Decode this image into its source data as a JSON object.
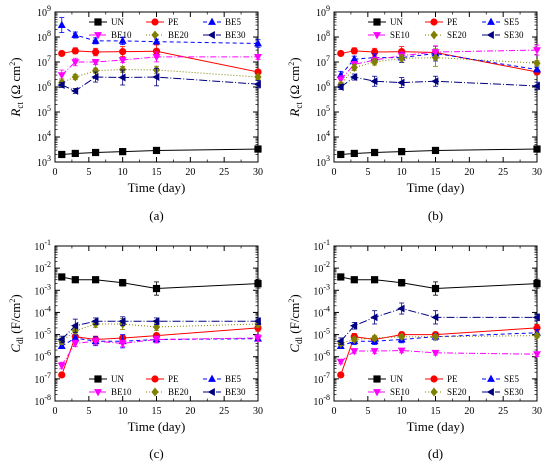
{
  "figure": {
    "panel_labels": [
      "(a)",
      "(b)",
      "(c)",
      "(d)"
    ]
  },
  "chart_data": [
    {
      "type": "line",
      "panel": "(a)",
      "y_scale": "log",
      "ylim": [
        1000,
        1000000000
      ],
      "xlim": [
        0,
        30
      ],
      "xlabel": "Time (day)",
      "ylabel": "R_ct (Ω cm²)",
      "ylabel_parts": {
        "main": "R",
        "sub": "ct",
        "unit": " (Ω cm",
        "sup": "2",
        "close": ")"
      },
      "x_ticks": [
        0,
        5,
        10,
        15,
        20,
        25,
        30
      ],
      "y_ticks": [
        {
          "v": 1000,
          "mant": "10",
          "exp": "3"
        },
        {
          "v": 10000,
          "mant": "10",
          "exp": "4"
        },
        {
          "v": 100000,
          "mant": "10",
          "exp": "5"
        },
        {
          "v": 1000000,
          "mant": "10",
          "exp": "6"
        },
        {
          "v": 10000000,
          "mant": "10",
          "exp": "7"
        },
        {
          "v": 100000000,
          "mant": "10",
          "exp": "8"
        },
        {
          "v": 1000000000,
          "mant": "10",
          "exp": "9"
        }
      ],
      "x": [
        1,
        3,
        6,
        10,
        15,
        30
      ],
      "legend": {
        "placement": "top",
        "rows": [
          [
            "UN",
            "PE",
            "BE5"
          ],
          [
            "BE10",
            "BE20",
            "BE30"
          ]
        ]
      },
      "series": [
        {
          "name": "UN",
          "color": "#000000",
          "marker": "square",
          "dash": "",
          "values": [
            2000,
            2200,
            2400,
            2600,
            2900,
            3300
          ],
          "err": [
            0.12,
            0.1,
            0.08,
            0.06,
            0.05,
            0.04
          ]
        },
        {
          "name": "PE",
          "color": "#ff0000",
          "marker": "circle",
          "dash": "",
          "values": [
            22000000,
            28000000,
            25000000,
            26000000,
            27000000,
            4000000
          ],
          "err": [
            0,
            0.12,
            0.15,
            0.2,
            0.25,
            0.08
          ]
        },
        {
          "name": "BE5",
          "color": "#0000ff",
          "marker": "triangle-up",
          "dash": "4,3",
          "values": [
            300000000,
            120000000,
            70000000,
            70000000,
            65000000,
            55000000
          ],
          "err": [
            0.3,
            0.12,
            0.12,
            0.15,
            0.1,
            0.15
          ]
        },
        {
          "name": "BE10",
          "color": "#ff00ff",
          "marker": "triangle-down",
          "dash": "6,2,1,2",
          "values": [
            3000000,
            10000000,
            10000000,
            12000000,
            16000000,
            16000000
          ],
          "err": [
            0.2,
            0.15,
            0.1,
            0.1,
            0.2,
            0.1
          ]
        },
        {
          "name": "BE20",
          "color": "#808000",
          "marker": "diamond",
          "dash": "1,2",
          "values": [
            1500000,
            2500000,
            4500000,
            5000000,
            4800000,
            2500000
          ],
          "err": [
            0.15,
            0.1,
            0.1,
            0.12,
            0.15,
            0.1
          ]
        },
        {
          "name": "BE30",
          "color": "#000080",
          "marker": "triangle-left",
          "dash": "8,2,1,2",
          "values": [
            1200000,
            700000,
            2500000,
            2400000,
            2500000,
            1300000
          ],
          "err": [
            0.1,
            0.1,
            0.2,
            0.3,
            0.35,
            0.15
          ]
        }
      ]
    },
    {
      "type": "line",
      "panel": "(b)",
      "y_scale": "log",
      "ylim": [
        1000,
        1000000000
      ],
      "xlim": [
        0,
        30
      ],
      "xlabel": "Time (day)",
      "ylabel": "R_ct (Ω cm²)",
      "ylabel_parts": {
        "main": "R",
        "sub": "ct",
        "unit": " (Ω cm",
        "sup": "2",
        "close": ")"
      },
      "x_ticks": [
        0,
        5,
        10,
        15,
        20,
        25,
        30
      ],
      "y_ticks": [
        {
          "v": 1000,
          "mant": "10",
          "exp": "3"
        },
        {
          "v": 10000,
          "mant": "10",
          "exp": "4"
        },
        {
          "v": 100000,
          "mant": "10",
          "exp": "5"
        },
        {
          "v": 1000000,
          "mant": "10",
          "exp": "6"
        },
        {
          "v": 10000000,
          "mant": "10",
          "exp": "7"
        },
        {
          "v": 100000000,
          "mant": "10",
          "exp": "8"
        },
        {
          "v": 1000000000,
          "mant": "10",
          "exp": "9"
        }
      ],
      "x": [
        1,
        3,
        6,
        10,
        15,
        30
      ],
      "legend": {
        "placement": "top",
        "rows": [
          [
            "UN",
            "PE",
            "SE5"
          ],
          [
            "SE10",
            "SE20",
            "SE30"
          ]
        ]
      },
      "series": [
        {
          "name": "UN",
          "color": "#000000",
          "marker": "square",
          "dash": "",
          "values": [
            2000,
            2200,
            2400,
            2600,
            2900,
            3300
          ],
          "err": [
            0.12,
            0.1,
            0.08,
            0.06,
            0.05,
            0.04
          ]
        },
        {
          "name": "PE",
          "color": "#ff0000",
          "marker": "circle",
          "dash": "",
          "values": [
            22000000,
            28000000,
            25000000,
            26000000,
            24000000,
            4000000
          ],
          "err": [
            0,
            0.12,
            0.15,
            0.2,
            0.25,
            0.1
          ]
        },
        {
          "name": "SE5",
          "color": "#0000ff",
          "marker": "triangle-up",
          "dash": "4,3",
          "values": [
            3000000,
            13000000,
            15000000,
            15000000,
            22000000,
            5000000
          ],
          "err": [
            0.15,
            0.12,
            0.15,
            0.2,
            0.3,
            0.1
          ]
        },
        {
          "name": "SE10",
          "color": "#ff00ff",
          "marker": "triangle-down",
          "dash": "6,2,1,2",
          "values": [
            2000000,
            8000000,
            12000000,
            18000000,
            25000000,
            30000000
          ],
          "err": [
            0.15,
            0.12,
            0.12,
            0.15,
            0.25,
            0.2
          ]
        },
        {
          "name": "SE20",
          "color": "#808000",
          "marker": "diamond",
          "dash": "1,2",
          "values": [
            1200000,
            6000000,
            10000000,
            14000000,
            15000000,
            9000000
          ],
          "err": [
            0.1,
            0.12,
            0.12,
            0.15,
            0.35,
            0.1
          ]
        },
        {
          "name": "SE30",
          "color": "#000080",
          "marker": "triangle-left",
          "dash": "8,2,1,2",
          "values": [
            1000000,
            2500000,
            1700000,
            1500000,
            1700000,
            1100000
          ],
          "err": [
            0.1,
            0.12,
            0.2,
            0.2,
            0.2,
            0.15
          ]
        }
      ]
    },
    {
      "type": "line",
      "panel": "(c)",
      "y_scale": "log",
      "ylim": [
        1e-08,
        0.1
      ],
      "xlim": [
        0,
        30
      ],
      "xlabel": "Time (day)",
      "ylabel": "C_dl (F/cm²)",
      "ylabel_parts": {
        "main": "C",
        "sub": "dl",
        "unit": " (F/cm",
        "sup": "2",
        "close": ")"
      },
      "x_ticks": [
        0,
        5,
        10,
        15,
        20,
        25,
        30
      ],
      "y_ticks": [
        {
          "v": 1e-08,
          "mant": "10",
          "exp": "-8"
        },
        {
          "v": 1e-07,
          "mant": "10",
          "exp": "-7"
        },
        {
          "v": 1e-06,
          "mant": "10",
          "exp": "-6"
        },
        {
          "v": 1e-05,
          "mant": "10",
          "exp": "-5"
        },
        {
          "v": 0.0001,
          "mant": "10",
          "exp": "-4"
        },
        {
          "v": 0.001,
          "mant": "10",
          "exp": "-3"
        },
        {
          "v": 0.01,
          "mant": "10",
          "exp": "-2"
        },
        {
          "v": 0.1,
          "mant": "10",
          "exp": "-1"
        }
      ],
      "x": [
        1,
        3,
        6,
        10,
        15,
        30
      ],
      "legend": {
        "placement": "bottom",
        "rows": [
          [
            "UN",
            "PE",
            "BE5"
          ],
          [
            "BE10",
            "BE20",
            "BE30"
          ]
        ]
      },
      "series": [
        {
          "name": "UN",
          "color": "#000000",
          "marker": "square",
          "dash": "",
          "values": [
            0.004,
            0.003,
            0.003,
            0.0022,
            0.0012,
            0.002
          ],
          "err": [
            0.05,
            0.1,
            0.1,
            0.15,
            0.3,
            0.2
          ]
        },
        {
          "name": "PE",
          "color": "#ff0000",
          "marker": "circle",
          "dash": "",
          "values": [
            1.5e-07,
            8e-06,
            6e-06,
            7e-06,
            9e-06,
            2e-05
          ],
          "err": [
            0,
            0.2,
            0.15,
            0.1,
            0.1,
            0.15
          ]
        },
        {
          "name": "BE5",
          "color": "#0000ff",
          "marker": "triangle-up",
          "dash": "4,3",
          "values": [
            3e-06,
            7e-06,
            5e-06,
            5e-06,
            6e-06,
            6.5e-06
          ],
          "err": [
            0.1,
            0.15,
            0.2,
            0.3,
            0.15,
            0.1
          ]
        },
        {
          "name": "BE10",
          "color": "#ff00ff",
          "marker": "triangle-down",
          "dash": "6,2,1,2",
          "values": [
            4e-07,
            4e-06,
            5e-06,
            4e-06,
            6e-06,
            7e-06
          ],
          "err": [
            0.15,
            0.15,
            0.15,
            0.15,
            0.15,
            0.15
          ]
        },
        {
          "name": "BE20",
          "color": "#808000",
          "marker": "diamond",
          "dash": "1,2",
          "values": [
            5e-06,
            1.5e-05,
            3e-05,
            3e-05,
            2.2e-05,
            3e-05
          ],
          "err": [
            0.15,
            0.15,
            0.15,
            0.25,
            0.15,
            0.15
          ]
        },
        {
          "name": "BE30",
          "color": "#000080",
          "marker": "triangle-left",
          "dash": "8,2,1,2",
          "values": [
            6e-06,
            2.5e-05,
            4e-05,
            4e-05,
            4e-05,
            4e-05
          ],
          "err": [
            0.15,
            0.3,
            0.15,
            0.2,
            0.15,
            0.15
          ]
        }
      ]
    },
    {
      "type": "line",
      "panel": "(d)",
      "y_scale": "log",
      "ylim": [
        1e-08,
        0.1
      ],
      "xlim": [
        0,
        30
      ],
      "xlabel": "Time (day)",
      "ylabel": "C_dl (F/cm²)",
      "ylabel_parts": {
        "main": "C",
        "sub": "dl",
        "unit": " (F/cm",
        "sup": "2",
        "close": ")"
      },
      "x_ticks": [
        0,
        5,
        10,
        15,
        20,
        25,
        30
      ],
      "y_ticks": [
        {
          "v": 1e-08,
          "mant": "10",
          "exp": "-8"
        },
        {
          "v": 1e-07,
          "mant": "10",
          "exp": "-7"
        },
        {
          "v": 1e-06,
          "mant": "10",
          "exp": "-6"
        },
        {
          "v": 1e-05,
          "mant": "10",
          "exp": "-5"
        },
        {
          "v": 0.0001,
          "mant": "10",
          "exp": "-4"
        },
        {
          "v": 0.001,
          "mant": "10",
          "exp": "-3"
        },
        {
          "v": 0.01,
          "mant": "10",
          "exp": "-2"
        },
        {
          "v": 0.1,
          "mant": "10",
          "exp": "-1"
        }
      ],
      "x": [
        1,
        3,
        6,
        10,
        15,
        30
      ],
      "legend": {
        "placement": "bottom",
        "rows": [
          [
            "UN",
            "PE",
            "SE5"
          ],
          [
            "SE10",
            "SE20",
            "SE30"
          ]
        ]
      },
      "series": [
        {
          "name": "UN",
          "color": "#000000",
          "marker": "square",
          "dash": "",
          "values": [
            0.004,
            0.003,
            0.003,
            0.0022,
            0.0012,
            0.002
          ],
          "err": [
            0.05,
            0.1,
            0.1,
            0.15,
            0.3,
            0.2
          ]
        },
        {
          "name": "PE",
          "color": "#ff0000",
          "marker": "circle",
          "dash": "",
          "values": [
            1.5e-07,
            8e-06,
            6e-06,
            1e-05,
            1e-05,
            2e-05
          ],
          "err": [
            0,
            0.15,
            0.15,
            0.1,
            0.1,
            0.15
          ]
        },
        {
          "name": "SE5",
          "color": "#0000ff",
          "marker": "triangle-up",
          "dash": "4,3",
          "values": [
            3e-06,
            5e-06,
            5e-06,
            6e-06,
            8e-06,
            1.2e-05
          ],
          "err": [
            0.1,
            0.15,
            0.15,
            0.15,
            0.15,
            0.15
          ]
        },
        {
          "name": "SE10",
          "color": "#ff00ff",
          "marker": "triangle-down",
          "dash": "6,2,1,2",
          "values": [
            6e-07,
            1.8e-06,
            1.8e-06,
            1.9e-06,
            1.5e-06,
            1.3e-06
          ],
          "err": [
            0.1,
            0.1,
            0.1,
            0.1,
            0.1,
            0.1
          ]
        },
        {
          "name": "SE20",
          "color": "#808000",
          "marker": "diamond",
          "dash": "1,2",
          "values": [
            4e-06,
            6e-06,
            7e-06,
            8e-06,
            8e-06,
            9e-06
          ],
          "err": [
            0.1,
            0.1,
            0.1,
            0.1,
            0.1,
            0.1
          ]
        },
        {
          "name": "SE30",
          "color": "#000080",
          "marker": "triangle-left",
          "dash": "8,2,1,2",
          "values": [
            5e-06,
            2.5e-05,
            6e-05,
            0.00015,
            6e-05,
            6e-05
          ],
          "err": [
            0.15,
            0.15,
            0.3,
            0.25,
            0.3,
            0.15
          ]
        }
      ]
    }
  ]
}
